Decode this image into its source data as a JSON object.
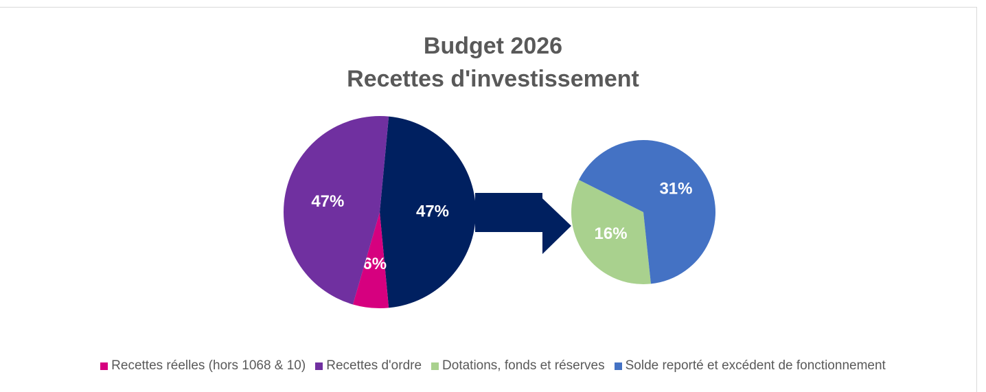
{
  "chart_data": {
    "type": "pie",
    "title": "Budget 2026",
    "subtitle": "Recettes d'investissement",
    "categories": [
      "Recettes réelles (hors 1068 & 10)",
      "Recettes d'ordre",
      "Dotations, fonds et réserves",
      "Solde reporté et excédent de fonctionnement"
    ],
    "values": [
      6,
      47,
      16,
      31
    ],
    "value_labels": [
      "6%",
      "47%",
      "16%",
      "31%"
    ],
    "colors": [
      "#d6007f",
      "#7030a0",
      "#a9d18e",
      "#4472c4"
    ],
    "secondary": [
      false,
      false,
      true,
      true
    ],
    "other": {
      "value": 47,
      "value_label": "47%",
      "color": "#002060"
    }
  }
}
